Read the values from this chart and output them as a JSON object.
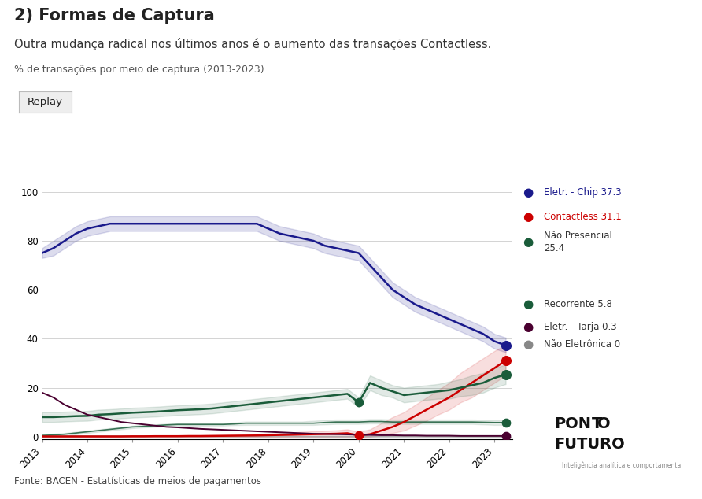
{
  "title": "2) Formas de Captura",
  "subtitle": "Outra mudança radical nos últimos anos é o aumento das transações Contactless.",
  "ylabel_label": "% de transações por meio de captura (2013-2023)",
  "source": "Fonte: BACEN - Estatísticas de meios de pagamentos",
  "years": [
    2013.0,
    2013.25,
    2013.5,
    2013.75,
    2014.0,
    2014.25,
    2014.5,
    2014.75,
    2015.0,
    2015.25,
    2015.5,
    2015.75,
    2016.0,
    2016.25,
    2016.5,
    2016.75,
    2017.0,
    2017.25,
    2017.5,
    2017.75,
    2018.0,
    2018.25,
    2018.5,
    2018.75,
    2019.0,
    2019.25,
    2019.5,
    2019.75,
    2020.0,
    2020.25,
    2020.5,
    2020.75,
    2021.0,
    2021.25,
    2021.5,
    2021.75,
    2022.0,
    2022.25,
    2022.5,
    2022.75,
    2023.0,
    2023.25
  ],
  "chip": [
    75,
    77,
    80,
    83,
    85,
    86,
    87,
    87,
    87,
    87,
    87,
    87,
    87,
    87,
    87,
    87,
    87,
    87,
    87,
    87,
    85,
    83,
    82,
    81,
    80,
    78,
    77,
    76,
    75,
    70,
    65,
    60,
    57,
    54,
    52,
    50,
    48,
    46,
    44,
    42,
    39,
    37.3
  ],
  "chip_upper": [
    77,
    80,
    83,
    86,
    88,
    89,
    90,
    90,
    90,
    90,
    90,
    90,
    90,
    90,
    90,
    90,
    90,
    90,
    90,
    90,
    88,
    86,
    85,
    84,
    83,
    81,
    80,
    79,
    78,
    73,
    68,
    63,
    60,
    57,
    55,
    53,
    51,
    49,
    47,
    45,
    42,
    40.5
  ],
  "chip_lower": [
    73,
    74,
    77,
    80,
    82,
    83,
    84,
    84,
    84,
    84,
    84,
    84,
    84,
    84,
    84,
    84,
    84,
    84,
    84,
    84,
    82,
    80,
    79,
    78,
    77,
    75,
    74,
    73,
    72,
    67,
    62,
    57,
    54,
    51,
    49,
    47,
    45,
    43,
    41,
    39,
    36,
    34.5
  ],
  "contactless": [
    0.1,
    0.1,
    0.1,
    0.1,
    0.1,
    0.1,
    0.1,
    0.1,
    0.15,
    0.15,
    0.2,
    0.2,
    0.2,
    0.25,
    0.25,
    0.3,
    0.35,
    0.4,
    0.45,
    0.5,
    0.6,
    0.7,
    0.8,
    0.9,
    1.0,
    1.1,
    1.2,
    1.4,
    0.5,
    1.0,
    2.5,
    4.0,
    6.0,
    8.5,
    11,
    13.5,
    16,
    19,
    22,
    25,
    28,
    31.1
  ],
  "contactless_upper": [
    0.3,
    0.3,
    0.3,
    0.3,
    0.3,
    0.3,
    0.3,
    0.3,
    0.4,
    0.4,
    0.5,
    0.5,
    0.5,
    0.6,
    0.6,
    0.7,
    0.8,
    0.9,
    1.0,
    1.1,
    1.3,
    1.5,
    1.7,
    2.0,
    2.2,
    2.4,
    2.6,
    3.0,
    2.0,
    3.0,
    5.5,
    8.0,
    10,
    13,
    16,
    19,
    22,
    26,
    29,
    32,
    35,
    37.5
  ],
  "contactless_lower": [
    0.0,
    0.0,
    0.0,
    0.0,
    0.0,
    0.0,
    0.0,
    0.0,
    0.0,
    0.0,
    0.0,
    0.0,
    0.0,
    0.0,
    0.0,
    0.0,
    0.0,
    0.0,
    0.0,
    0.0,
    0.0,
    0.0,
    0.0,
    0.0,
    0.0,
    0.0,
    0.0,
    0.0,
    0.0,
    0.0,
    0.5,
    1.5,
    2.5,
    4.5,
    6.5,
    9,
    11,
    14,
    16,
    19,
    22,
    25
  ],
  "nao_presencial": [
    8,
    8,
    8.2,
    8.4,
    8.5,
    9,
    9.2,
    9.5,
    9.8,
    10,
    10.2,
    10.5,
    10.8,
    11,
    11.2,
    11.5,
    12,
    12.5,
    13,
    13.5,
    14,
    14.5,
    15,
    15.5,
    16,
    16.5,
    17,
    17.5,
    14,
    22,
    20,
    18.5,
    17,
    17.5,
    18,
    18.5,
    19,
    20,
    21,
    22,
    24,
    25.4
  ],
  "nao_presencial_upper": [
    10,
    10,
    10.2,
    10.4,
    10.5,
    11,
    11.2,
    11.5,
    11.8,
    12,
    12.2,
    12.5,
    12.8,
    13,
    13.2,
    13.5,
    14,
    14.5,
    15,
    15.5,
    16,
    16.5,
    17,
    17.5,
    18,
    18.5,
    19,
    19.5,
    16,
    25,
    23,
    21,
    20,
    20.5,
    21,
    21.5,
    22.5,
    23.5,
    25,
    26,
    28,
    29.5
  ],
  "nao_presencial_lower": [
    6,
    6,
    6.2,
    6.4,
    6.5,
    7,
    7.2,
    7.5,
    7.8,
    8,
    8.2,
    8.5,
    8.8,
    9,
    9.2,
    9.5,
    10,
    10.5,
    11,
    11.5,
    12,
    12.5,
    13,
    13.5,
    14,
    14.5,
    15,
    15.5,
    12,
    19,
    17,
    16,
    14,
    14.5,
    15,
    15.5,
    15.5,
    16.5,
    17,
    18,
    20,
    21.5
  ],
  "recorrente": [
    0.5,
    0.7,
    1.0,
    1.5,
    2.0,
    2.5,
    3.0,
    3.5,
    4.0,
    4.2,
    4.5,
    4.8,
    5.0,
    5.0,
    5.0,
    5.0,
    5.0,
    5.2,
    5.5,
    5.5,
    5.5,
    5.5,
    5.5,
    5.5,
    5.5,
    5.8,
    6.0,
    6.0,
    6.0,
    6.2,
    6.2,
    6.0,
    6.0,
    6.0,
    6.0,
    6.0,
    6.0,
    6.0,
    6.0,
    5.9,
    5.8,
    5.8
  ],
  "recorrente_upper": [
    1.0,
    1.2,
    1.5,
    2.0,
    2.5,
    3.0,
    3.5,
    4.0,
    4.5,
    4.8,
    5.0,
    5.3,
    5.5,
    5.5,
    5.5,
    5.5,
    5.5,
    5.8,
    6.2,
    6.2,
    6.2,
    6.2,
    6.2,
    6.2,
    6.5,
    6.8,
    7.0,
    7.0,
    7.0,
    7.2,
    7.2,
    7.0,
    7.0,
    7.0,
    7.0,
    7.0,
    7.0,
    7.0,
    7.0,
    6.9,
    6.8,
    6.8
  ],
  "recorrente_lower": [
    0.0,
    0.2,
    0.5,
    1.0,
    1.5,
    2.0,
    2.5,
    3.0,
    3.5,
    3.8,
    4.0,
    4.3,
    4.5,
    4.5,
    4.5,
    4.5,
    4.5,
    4.7,
    4.8,
    4.8,
    4.8,
    4.8,
    4.8,
    4.8,
    4.8,
    5.0,
    5.2,
    5.2,
    5.2,
    5.4,
    5.4,
    5.2,
    5.2,
    5.2,
    5.2,
    5.2,
    5.2,
    5.2,
    5.2,
    5.0,
    4.8,
    4.8
  ],
  "tarja": [
    18,
    16,
    13,
    11,
    9,
    8,
    7,
    6,
    5.5,
    5,
    4.5,
    4,
    3.8,
    3.5,
    3.2,
    3.0,
    2.8,
    2.6,
    2.4,
    2.2,
    2.0,
    1.8,
    1.6,
    1.4,
    1.2,
    1.1,
    1.0,
    0.9,
    0.8,
    0.7,
    0.6,
    0.6,
    0.5,
    0.5,
    0.4,
    0.4,
    0.4,
    0.3,
    0.3,
    0.3,
    0.3,
    0.3
  ],
  "nao_eletronica": [
    0.3,
    0.3,
    0.3,
    0.3,
    0.3,
    0.3,
    0.3,
    0.3,
    0.3,
    0.3,
    0.2,
    0.2,
    0.2,
    0.2,
    0.2,
    0.2,
    0.2,
    0.2,
    0.2,
    0.2,
    0.2,
    0.2,
    0.2,
    0.1,
    0.1,
    0.1,
    0.1,
    0.1,
    0.1,
    0.1,
    0.1,
    0.1,
    0.1,
    0.1,
    0.05,
    0.05,
    0.05,
    0.0,
    0.0,
    0.0,
    0.0,
    0.0
  ],
  "color_chip": "#1a1a8c",
  "color_contactless": "#cc0000",
  "color_nao_presencial": "#1a5c3a",
  "color_recorrente": "#1a5c3a",
  "color_tarja": "#4a0030",
  "color_nao_eletronica": "#aaaaaa",
  "legend_labels": [
    "Eletr. - Chip 37.3",
    "Contactless 31.1",
    "Não Presencial\n25.4",
    "Recorrente 5.8",
    "Eletr. - Tarja 0.3",
    "Não Eletrônica 0"
  ],
  "yticks": [
    0,
    20,
    40,
    60,
    80,
    100
  ],
  "xtick_years": [
    2013,
    2014,
    2015,
    2016,
    2017,
    2018,
    2019,
    2020,
    2021,
    2022,
    2023
  ]
}
